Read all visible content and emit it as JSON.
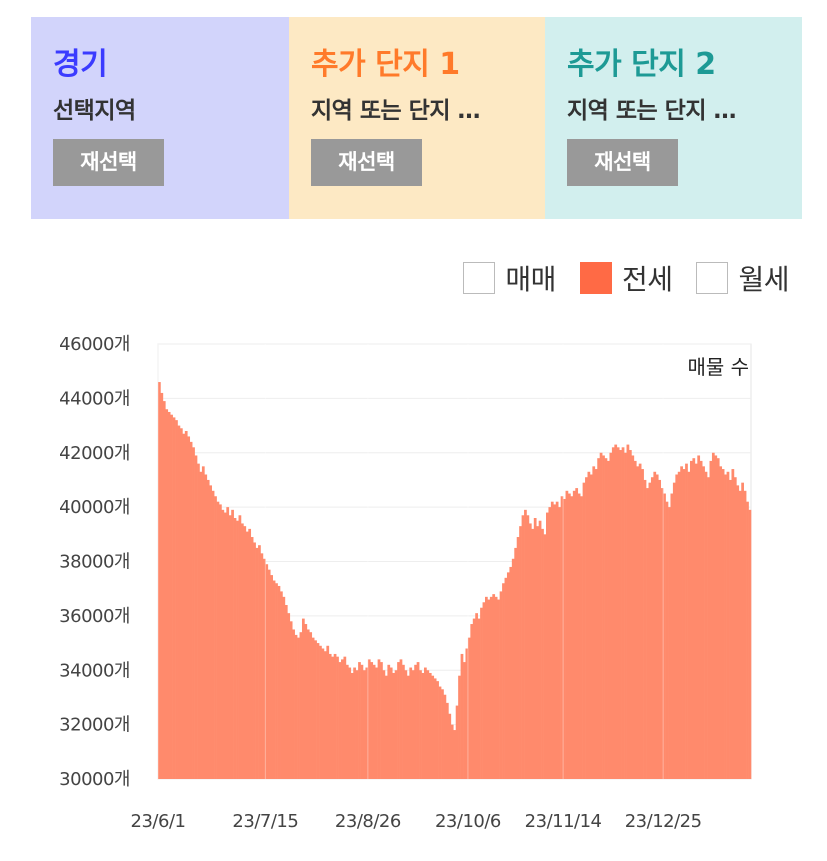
{
  "panels": [
    {
      "title": "경기",
      "subtitle": "선택지역",
      "button": "재선택",
      "color": "#3b3bff"
    },
    {
      "title": "추가 단지 1",
      "subtitle": "지역 또는 단지 …",
      "button": "재선택",
      "color": "#ff7a2a"
    },
    {
      "title": "추가 단지 2",
      "subtitle": "지역 또는 단지 …",
      "button": "재선택",
      "color": "#1d9a95"
    }
  ],
  "legend": [
    {
      "label": "매매",
      "checked": false
    },
    {
      "label": "전세",
      "checked": true
    },
    {
      "label": "월세",
      "checked": false
    }
  ],
  "chart_data": {
    "type": "bar",
    "series_label": "매물 수",
    "bar_color": "#ff8a6c",
    "ylim": [
      30000,
      46000
    ],
    "y_ticks": [
      "46000개",
      "44000개",
      "42000개",
      "40000개",
      "38000개",
      "36000개",
      "34000개",
      "32000개",
      "30000개"
    ],
    "x_ticks": [
      "23/6/1",
      "23/7/15",
      "23/8/26",
      "23/10/6",
      "23/11/14",
      "23/12/25"
    ],
    "x_tick_index": [
      0,
      44,
      86,
      127,
      166,
      207
    ],
    "grid": true,
    "values": [
      44600,
      44200,
      43900,
      43600,
      43500,
      43400,
      43300,
      43200,
      43000,
      42900,
      42700,
      42800,
      42600,
      42400,
      42200,
      41900,
      41600,
      41300,
      41500,
      41200,
      41000,
      40800,
      40600,
      40400,
      40200,
      40100,
      39900,
      39800,
      40000,
      39700,
      39900,
      39600,
      39500,
      39700,
      39400,
      39300,
      39100,
      39200,
      38900,
      38700,
      38500,
      38600,
      38300,
      38100,
      37900,
      37700,
      37500,
      37300,
      37200,
      37100,
      36900,
      36700,
      36400,
      36100,
      35800,
      35500,
      35300,
      35200,
      35400,
      35900,
      35700,
      35500,
      35400,
      35200,
      35100,
      35000,
      34900,
      34800,
      34700,
      34900,
      34600,
      34500,
      34600,
      34500,
      34300,
      34400,
      34500,
      34200,
      34100,
      33900,
      34100,
      34000,
      34300,
      34200,
      34000,
      34100,
      34400,
      34300,
      34200,
      34100,
      34400,
      34300,
      34000,
      33800,
      34200,
      34100,
      33900,
      34000,
      34300,
      34400,
      34200,
      34000,
      33800,
      34100,
      34000,
      34200,
      34300,
      34000,
      33900,
      34100,
      34000,
      33900,
      33800,
      33700,
      33600,
      33400,
      33300,
      33100,
      32800,
      32400,
      32000,
      31800,
      32700,
      33800,
      34600,
      34300,
      34800,
      35200,
      35700,
      35900,
      36100,
      35900,
      36300,
      36500,
      36700,
      36600,
      36700,
      36800,
      36700,
      36600,
      36900,
      37200,
      37400,
      37600,
      37800,
      38100,
      38500,
      38900,
      39300,
      39700,
      39900,
      39700,
      39400,
      39200,
      39600,
      39300,
      39500,
      39200,
      39000,
      39800,
      40000,
      40200,
      40100,
      40200,
      40000,
      40400,
      40300,
      40600,
      40500,
      40400,
      40600,
      40700,
      40500,
      40400,
      40900,
      41100,
      41300,
      41200,
      41500,
      41400,
      41800,
      42000,
      41900,
      41800,
      41700,
      42000,
      42200,
      42300,
      42200,
      42100,
      42200,
      42000,
      42300,
      42100,
      41900,
      41700,
      41500,
      41600,
      41400,
      41000,
      40700,
      40900,
      41100,
      41300,
      41200,
      41000,
      40700,
      40500,
      40200,
      40000,
      40500,
      40900,
      41200,
      41300,
      41500,
      41400,
      41600,
      41300,
      41700,
      41800,
      41600,
      41900,
      41700,
      41500,
      41300,
      41100,
      41700,
      42000,
      41900,
      41800,
      41500,
      41400,
      41200,
      41300,
      41000,
      41400,
      41100,
      40800,
      40600,
      40900,
      40600,
      40200,
      39900
    ]
  }
}
